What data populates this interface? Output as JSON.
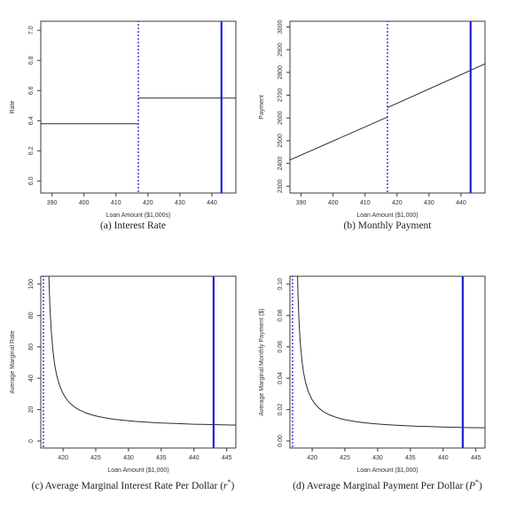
{
  "figure": {
    "background": "#ffffff",
    "frame_color": "#3a3a3a",
    "series_color": "#2b2b2b",
    "accent_blue": "#2323d6"
  },
  "captions": {
    "a": {
      "prefix": "(a) Interest Rate",
      "sym": "",
      "star": "",
      "suffix": ""
    },
    "b": {
      "prefix": "(b) Monthly Payment",
      "sym": "",
      "star": "",
      "suffix": ""
    },
    "c": {
      "prefix": "(c) Average Marginal Interest Rate Per Dollar (",
      "sym": "r",
      "star": "*",
      "suffix": ")"
    },
    "d": {
      "prefix": "(d) Average Marginal Payment Per Dollar (",
      "sym": "P",
      "star": "*",
      "suffix": ")"
    }
  },
  "chart_data": [
    {
      "id": "a",
      "type": "line",
      "title": "(a) Interest Rate",
      "xlabel": "Loan Amount ($1,000s)",
      "ylabel": "Rate",
      "xlim": [
        386.5,
        447.5
      ],
      "ylim": [
        5.92,
        7.06
      ],
      "xtick_vals": [
        390,
        400,
        410,
        420,
        430,
        440
      ],
      "xtick_labels": [
        "390",
        "400",
        "410",
        "420",
        "430",
        "440"
      ],
      "ytick_vals": [
        6.0,
        6.2,
        6.4,
        6.6,
        6.8,
        7.0
      ],
      "ytick_labels": [
        "6.0",
        "6.2",
        "6.4",
        "6.6",
        "6.8",
        "7.0"
      ],
      "grid": false,
      "legend": null,
      "vlines": [
        {
          "name": "conforming-limit-line",
          "x": 417,
          "style": "dotted",
          "width": 1.3
        },
        {
          "name": "observed-loan-line",
          "x": 443,
          "style": "solid",
          "width": 2.2
        }
      ],
      "series": [
        {
          "name": "conforming-rate-segment",
          "x": [
            386.5,
            417
          ],
          "y": [
            6.38,
            6.38
          ]
        },
        {
          "name": "jumbo-rate-segment",
          "x": [
            417,
            447.5
          ],
          "y": [
            6.55,
            6.55
          ]
        }
      ]
    },
    {
      "id": "b",
      "type": "line",
      "title": "(b) Monthly Payment",
      "xlabel": "Loan Amount ($1,000)",
      "ylabel": "Payment",
      "xlim": [
        386.5,
        447.5
      ],
      "ylim": [
        2270,
        3025
      ],
      "xtick_vals": [
        390,
        400,
        410,
        420,
        430,
        440
      ],
      "xtick_labels": [
        "390",
        "400",
        "410",
        "420",
        "430",
        "440"
      ],
      "ytick_vals": [
        2300,
        2400,
        2500,
        2600,
        2700,
        2800,
        2900,
        3000
      ],
      "ytick_labels": [
        "2300",
        "2400",
        "2500",
        "2600",
        "2700",
        "2800",
        "2900",
        "3000"
      ],
      "grid": false,
      "legend": null,
      "vlines": [
        {
          "name": "conforming-limit-line",
          "x": 417,
          "style": "dotted",
          "width": 1.3
        },
        {
          "name": "observed-loan-line",
          "x": 443,
          "style": "solid",
          "width": 2.2
        }
      ],
      "series": [
        {
          "name": "payment-conforming-segment",
          "x": [
            386.5,
            417
          ],
          "y": [
            2415,
            2604
          ]
        },
        {
          "name": "payment-jumbo-segment",
          "x": [
            417,
            447.5
          ],
          "y": [
            2645,
            2838
          ]
        }
      ]
    },
    {
      "id": "c",
      "type": "line",
      "title": "(c) Average Marginal Interest Rate Per Dollar (r*)",
      "xlabel": "Loan Amount ($1,000)",
      "ylabel": "Average Marginal Rate",
      "xlim": [
        416.6,
        446.4
      ],
      "ylim": [
        -4.5,
        105
      ],
      "xtick_vals": [
        420,
        425,
        430,
        435,
        440,
        445
      ],
      "xtick_labels": [
        "420",
        "425",
        "430",
        "435",
        "440",
        "445"
      ],
      "ytick_vals": [
        0,
        20,
        40,
        60,
        80,
        100
      ],
      "ytick_labels": [
        "0",
        "20",
        "40",
        "60",
        "80",
        "100"
      ],
      "grid": false,
      "legend": null,
      "vlines": [
        {
          "name": "conforming-limit-line",
          "x": 417,
          "style": "dotted",
          "width": 1.3
        },
        {
          "name": "observed-loan-line",
          "x": 443,
          "style": "solid",
          "width": 2.2
        }
      ],
      "series": [
        {
          "name": "avg-marginal-rate-curve",
          "x": [
            417.75,
            417.85,
            418.0,
            418.2,
            418.45,
            418.7,
            419.0,
            419.4,
            419.9,
            420.4,
            421.0,
            421.7,
            422.5,
            423.4,
            424.4,
            425.5,
            426.7,
            428.0,
            429.4,
            430.9,
            432.5,
            434.2,
            436.0,
            437.9,
            439.9,
            442.0,
            444.2,
            446.4
          ],
          "y": [
            120.7,
            103.4,
            85.5,
            70.0,
            57.6,
            49.3,
            42.4,
            36.2,
            31.0,
            27.4,
            24.3,
            21.8,
            19.7,
            18.0,
            16.6,
            15.5,
            14.5,
            13.7,
            13.1,
            12.5,
            12.1,
            11.6,
            11.3,
            11.0,
            10.7,
            10.5,
            10.3,
            10.1
          ]
        }
      ]
    },
    {
      "id": "d",
      "type": "line",
      "title": "(d) Average Marginal Payment Per Dollar (P*)",
      "xlabel": "Loan Amount ($1,000)",
      "ylabel": "Average Marginal Monthly Payment ($)",
      "xlim": [
        416.6,
        446.4
      ],
      "ylim": [
        -0.0045,
        0.105
      ],
      "xtick_vals": [
        420,
        425,
        430,
        435,
        440,
        445
      ],
      "xtick_labels": [
        "420",
        "425",
        "430",
        "435",
        "440",
        "445"
      ],
      "ytick_vals": [
        0.0,
        0.02,
        0.04,
        0.06,
        0.08,
        0.1
      ],
      "ytick_labels": [
        "0.00",
        "0.02",
        "0.04",
        "0.06",
        "0.08",
        "0.10"
      ],
      "grid": false,
      "legend": null,
      "vlines": [
        {
          "name": "conforming-limit-line",
          "x": 417,
          "style": "dotted",
          "width": 1.3
        },
        {
          "name": "observed-loan-line",
          "x": 443,
          "style": "solid",
          "width": 2.2
        }
      ],
      "series": [
        {
          "name": "avg-marginal-payment-curve",
          "x": [
            417.75,
            417.85,
            418.0,
            418.2,
            418.45,
            418.7,
            419.0,
            419.4,
            419.9,
            420.4,
            421.0,
            421.7,
            422.5,
            423.4,
            424.4,
            425.5,
            426.7,
            428.0,
            429.4,
            430.9,
            432.5,
            434.2,
            436.0,
            437.9,
            439.9,
            442.0,
            444.2,
            446.4
          ],
          "y": [
            0.1065,
            0.0911,
            0.0753,
            0.0615,
            0.0505,
            0.0432,
            0.0371,
            0.0315,
            0.0269,
            0.0237,
            0.021,
            0.0187,
            0.0169,
            0.0154,
            0.0141,
            0.0131,
            0.0123,
            0.0116,
            0.011,
            0.0105,
            0.0101,
            0.0097,
            0.0094,
            0.0092,
            0.0089,
            0.0087,
            0.0085,
            0.0084
          ]
        }
      ]
    }
  ]
}
